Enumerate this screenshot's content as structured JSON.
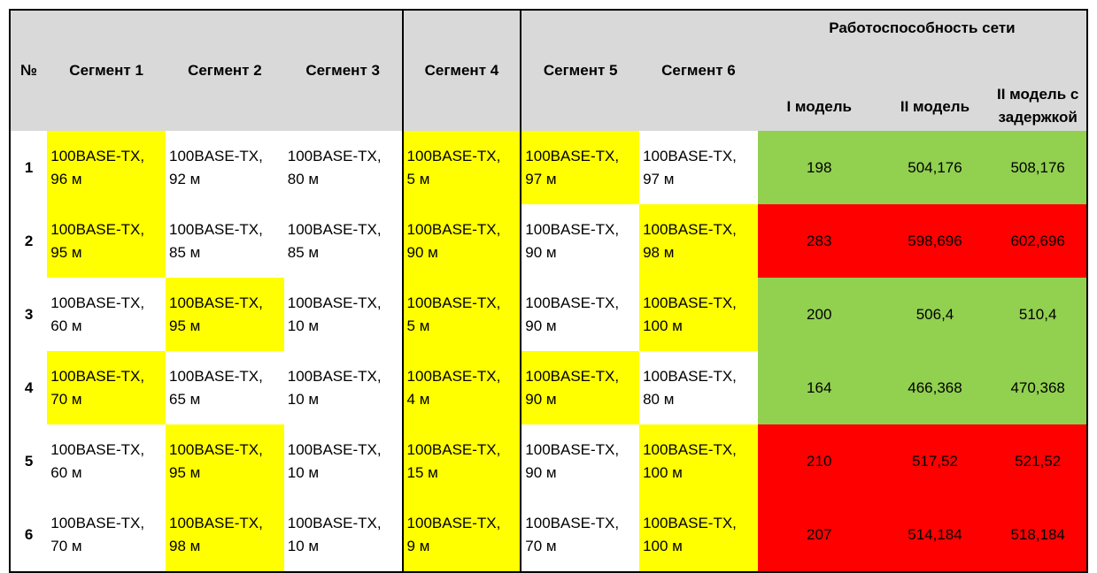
{
  "header": {
    "no": "№",
    "segments": [
      "Сегмент 1",
      "Сегмент 2",
      "Сегмент 3",
      "Сегмент 4",
      "Сегмент 5",
      "Сегмент 6"
    ],
    "group": "Работоспособность сети",
    "models": [
      "I модель",
      "II модель",
      "II модель с задержкой"
    ]
  },
  "rows": [
    {
      "no": "1",
      "segments": [
        {
          "l1": "100BASE-TX,",
          "l2": "96 м",
          "hl": true
        },
        {
          "l1": "100BASE-TX,",
          "l2": "92 м",
          "hl": false
        },
        {
          "l1": "100BASE-TX,",
          "l2": "80 м",
          "hl": false
        },
        {
          "l1": "100BASE-TX,",
          "l2": "5 м",
          "hl": true
        },
        {
          "l1": "100BASE-TX,",
          "l2": "97 м",
          "hl": true
        },
        {
          "l1": "100BASE-TX,",
          "l2": "97 м",
          "hl": false
        }
      ],
      "status": "green",
      "values": [
        "198",
        "504,176",
        "508,176"
      ]
    },
    {
      "no": "2",
      "segments": [
        {
          "l1": "100BASE-TX,",
          "l2": "95 м",
          "hl": true
        },
        {
          "l1": "100BASE-TX,",
          "l2": "85 м",
          "hl": false
        },
        {
          "l1": "100BASE-TX,",
          "l2": "85 м",
          "hl": false
        },
        {
          "l1": "100BASE-TX,",
          "l2": "90 м",
          "hl": true
        },
        {
          "l1": "100BASE-TX,",
          "l2": "90 м",
          "hl": false
        },
        {
          "l1": "100BASE-TX,",
          "l2": "98 м",
          "hl": true
        }
      ],
      "status": "red",
      "values": [
        "283",
        "598,696",
        "602,696"
      ]
    },
    {
      "no": "3",
      "segments": [
        {
          "l1": "100BASE-TX,",
          "l2": "60 м",
          "hl": false
        },
        {
          "l1": "100BASE-TX,",
          "l2": "95 м",
          "hl": true
        },
        {
          "l1": "100BASE-TX,",
          "l2": "10 м",
          "hl": false
        },
        {
          "l1": "100BASE-TX,",
          "l2": "5 м",
          "hl": true
        },
        {
          "l1": "100BASE-TX,",
          "l2": "90 м",
          "hl": false
        },
        {
          "l1": "100BASE-TX,",
          "l2": "100 м",
          "hl": true
        }
      ],
      "status": "green",
      "values": [
        "200",
        "506,4",
        "510,4"
      ]
    },
    {
      "no": "4",
      "segments": [
        {
          "l1": "100BASE-TX,",
          "l2": "70 м",
          "hl": true
        },
        {
          "l1": "100BASE-TX,",
          "l2": "65 м",
          "hl": false
        },
        {
          "l1": "100BASE-TX,",
          "l2": "10 м",
          "hl": false
        },
        {
          "l1": "100BASE-TX,",
          "l2": "4 м",
          "hl": true
        },
        {
          "l1": "100BASE-TX,",
          "l2": "90 м",
          "hl": true
        },
        {
          "l1": "100BASE-TX,",
          "l2": "80 м",
          "hl": false
        }
      ],
      "status": "green",
      "values": [
        "164",
        "466,368",
        "470,368"
      ]
    },
    {
      "no": "5",
      "segments": [
        {
          "l1": "100BASE-TX,",
          "l2": "60 м",
          "hl": false
        },
        {
          "l1": "100BASE-TX,",
          "l2": "95 м",
          "hl": true
        },
        {
          "l1": "100BASE-TX,",
          "l2": "10 м",
          "hl": false
        },
        {
          "l1": "100BASE-TX,",
          "l2": "15 м",
          "hl": true
        },
        {
          "l1": "100BASE-TX,",
          "l2": "90 м",
          "hl": false
        },
        {
          "l1": "100BASE-TX,",
          "l2": "100 м",
          "hl": true
        }
      ],
      "status": "red",
      "values": [
        "210",
        "517,52",
        "521,52"
      ]
    },
    {
      "no": "6",
      "segments": [
        {
          "l1": "100BASE-TX,",
          "l2": "70 м",
          "hl": false
        },
        {
          "l1": "100BASE-TX,",
          "l2": "98 м",
          "hl": true
        },
        {
          "l1": "100BASE-TX,",
          "l2": "10 м",
          "hl": false
        },
        {
          "l1": "100BASE-TX,",
          "l2": "9 м",
          "hl": true
        },
        {
          "l1": "100BASE-TX,",
          "l2": "70 м",
          "hl": false
        },
        {
          "l1": "100BASE-TX,",
          "l2": "100 м",
          "hl": true
        }
      ],
      "status": "red",
      "values": [
        "207",
        "514,184",
        "518,184"
      ]
    }
  ],
  "colors": {
    "highlight": "#ffff00",
    "ok": "#92d050",
    "fail": "#ff0000",
    "header": "#d9d9d9"
  }
}
